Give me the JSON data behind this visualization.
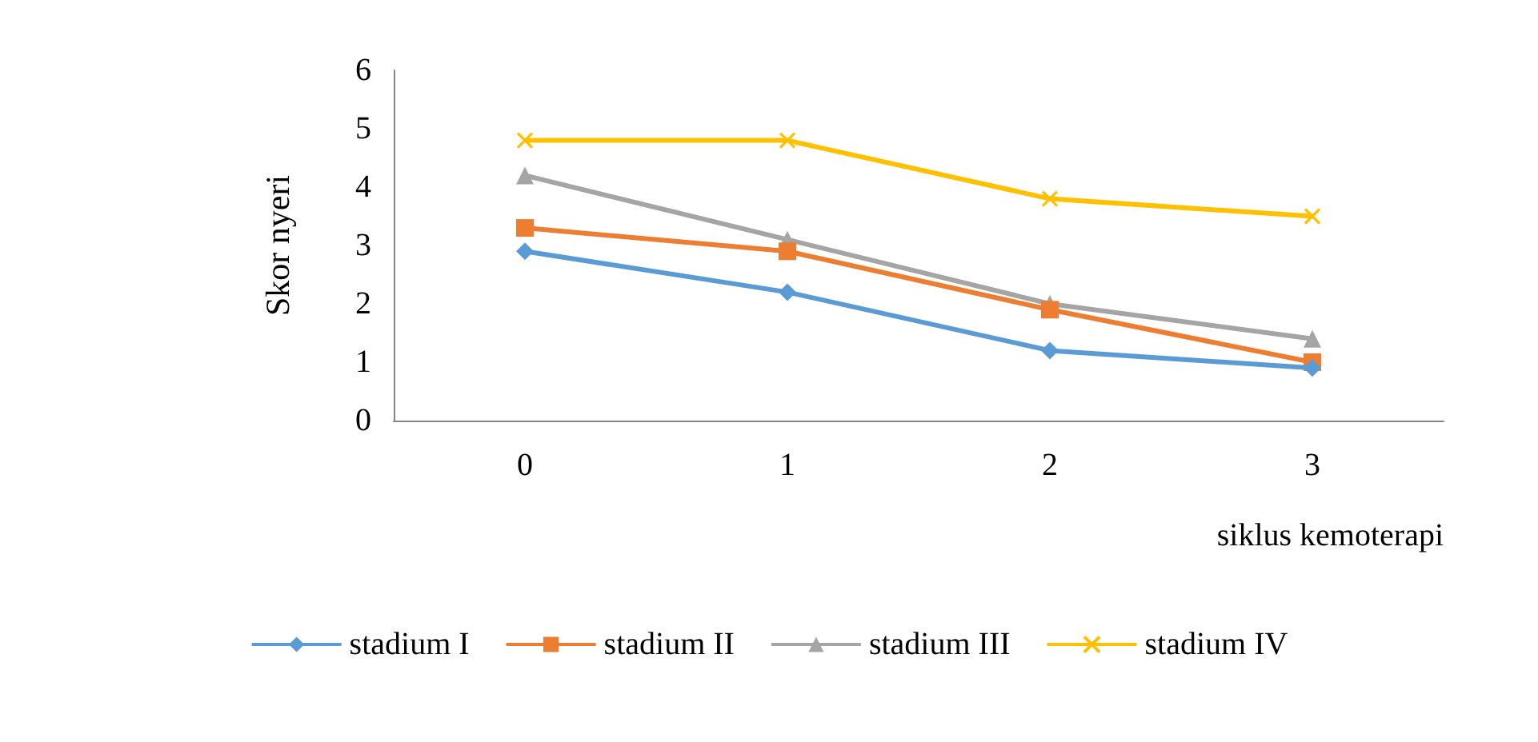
{
  "chart_data": {
    "type": "line",
    "xlabel": "siklus kemoterapi",
    "ylabel": "Skor nyeri",
    "categories": [
      "0",
      "1",
      "2",
      "3"
    ],
    "ylim": [
      0,
      6
    ],
    "yticks": [
      0,
      1,
      2,
      3,
      4,
      5,
      6
    ],
    "grid": false,
    "legend": "bottom",
    "series": [
      {
        "name": "stadium I",
        "color": "#5b9bd5",
        "marker": "diamond",
        "values": [
          2.9,
          2.2,
          1.2,
          0.9
        ]
      },
      {
        "name": "stadium II",
        "color": "#ed7d31",
        "marker": "square",
        "values": [
          3.3,
          2.9,
          1.9,
          1.0
        ]
      },
      {
        "name": "stadium III",
        "color": "#a5a5a5",
        "marker": "triangle",
        "values": [
          4.2,
          3.1,
          2.0,
          1.4
        ]
      },
      {
        "name": "stadium IV",
        "color": "#ffc000",
        "marker": "cross",
        "values": [
          4.8,
          4.8,
          3.8,
          3.5
        ]
      }
    ]
  }
}
